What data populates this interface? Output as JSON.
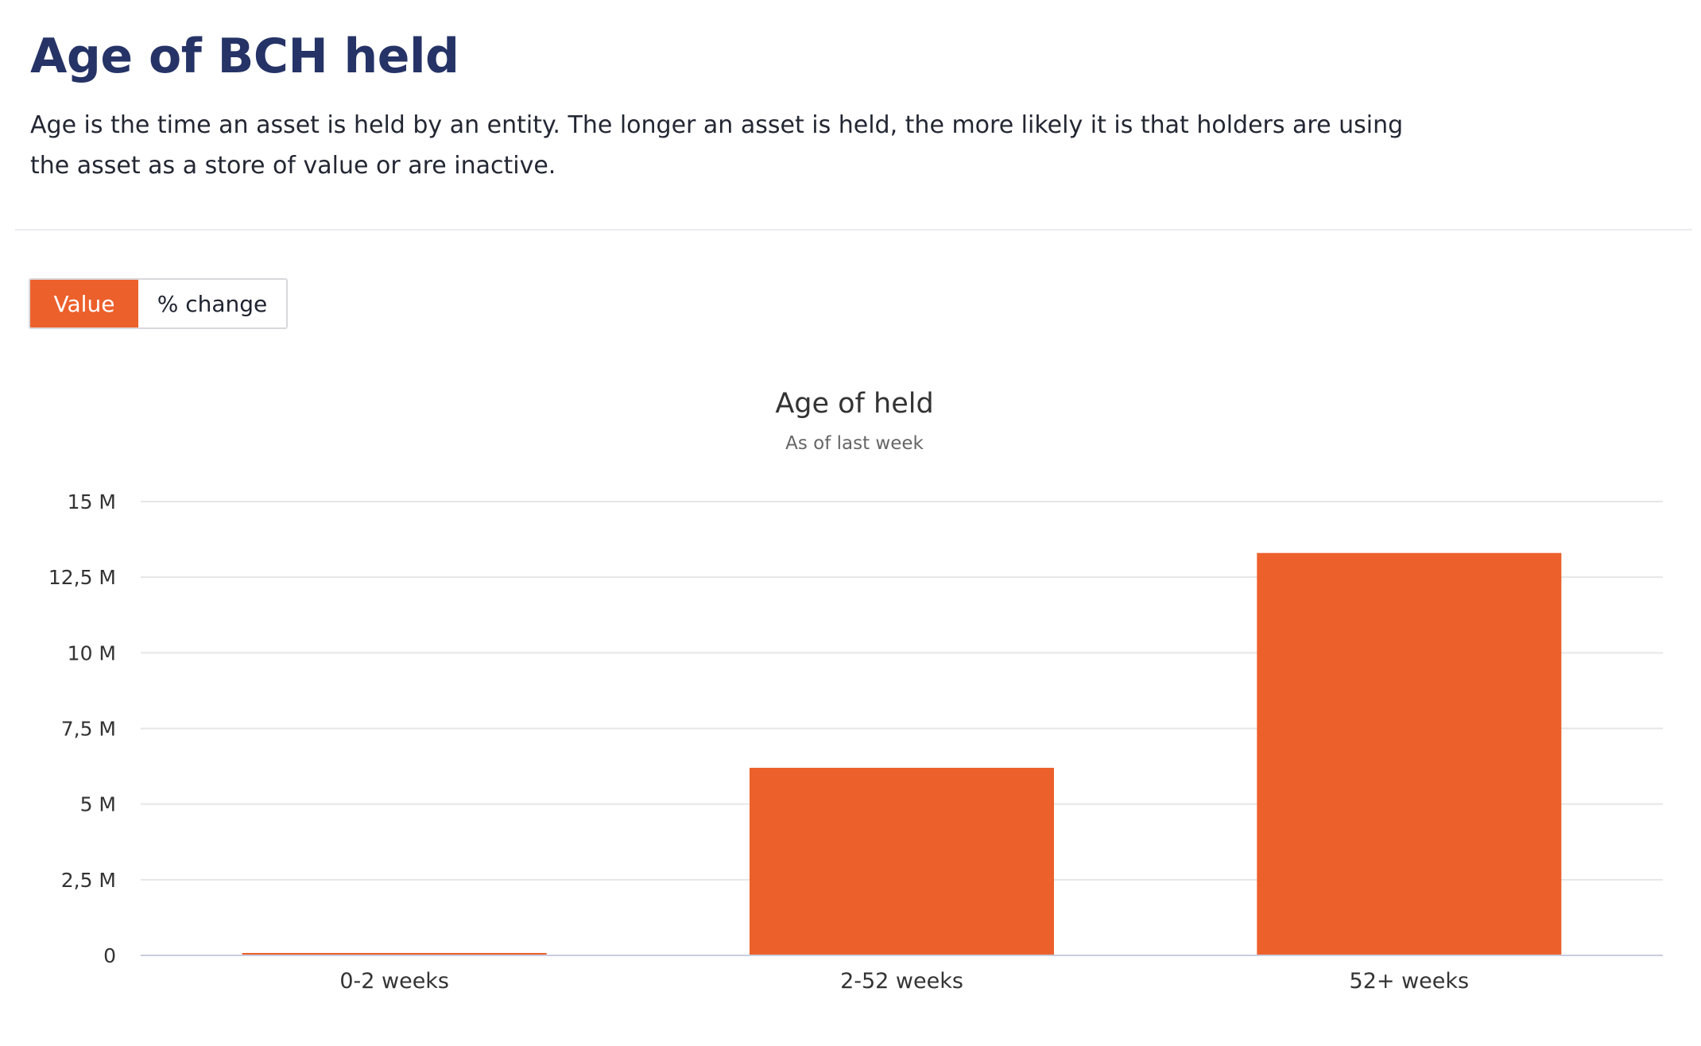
{
  "header": {
    "title": "Age of BCH held",
    "description": "Age is the time an asset is held by an entity. The longer an asset is held, the more likely it is that holders are using the asset as a store of value or are inactive."
  },
  "toggle": {
    "value_label": "Value",
    "change_label": "% change",
    "selected": "Value"
  },
  "colors": {
    "accent": "#ec602b",
    "title": "#253366",
    "grid": "#e6e6e6"
  },
  "chart_data": {
    "type": "bar",
    "title": "Age of held",
    "subtitle": "As of last week",
    "xlabel": "",
    "ylabel": "",
    "categories": [
      "0-2 weeks",
      "2-52 weeks",
      "52+ weeks"
    ],
    "values": [
      80000,
      6200000,
      13300000
    ],
    "ylim": [
      0,
      15000000
    ],
    "yticks": [
      0,
      2500000,
      5000000,
      7500000,
      10000000,
      12500000,
      15000000
    ],
    "ytick_labels": [
      "0",
      "2,5 M",
      "5 M",
      "7,5 M",
      "10 M",
      "12,5 M",
      "15 M"
    ],
    "grid": true,
    "legend": "none",
    "color": "#ec602b"
  }
}
